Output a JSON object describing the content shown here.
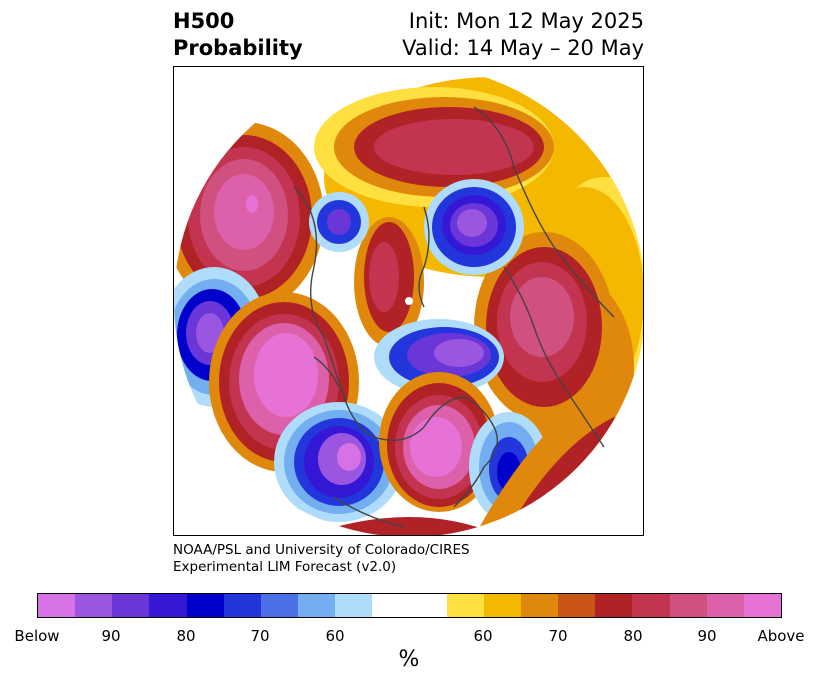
{
  "title": {
    "left_line1": "H500",
    "left_line2": "Probability",
    "right_line1": "Init: Mon 12 May 2025",
    "right_line2": "Valid: 14 May – 20 May"
  },
  "credit": {
    "line1": "NOAA/PSL and University of Colorado/CIRES",
    "line2": "Experimental LIM Forecast (v2.0)"
  },
  "colorbar": {
    "unit": "%",
    "ticks": [
      "Below",
      "90",
      "80",
      "70",
      "60",
      "60",
      "70",
      "80",
      "90",
      "Above"
    ],
    "below_colors": [
      "#d672e6",
      "#9a56e0",
      "#6a36d8",
      "#3418d6",
      "#0000cc",
      "#2236dc",
      "#4c70e6",
      "#72aef0",
      "#aedcfa"
    ],
    "neutral_color": "#ffffff",
    "above_colors": [
      "#ffe040",
      "#f5b800",
      "#e0880c",
      "#c85418",
      "#b02226",
      "#c23450",
      "#d05080",
      "#dc60aa",
      "#e672d6"
    ]
  },
  "map": {
    "projection": "north-polar-stereographic",
    "field": "500 hPa height anomaly probability"
  }
}
